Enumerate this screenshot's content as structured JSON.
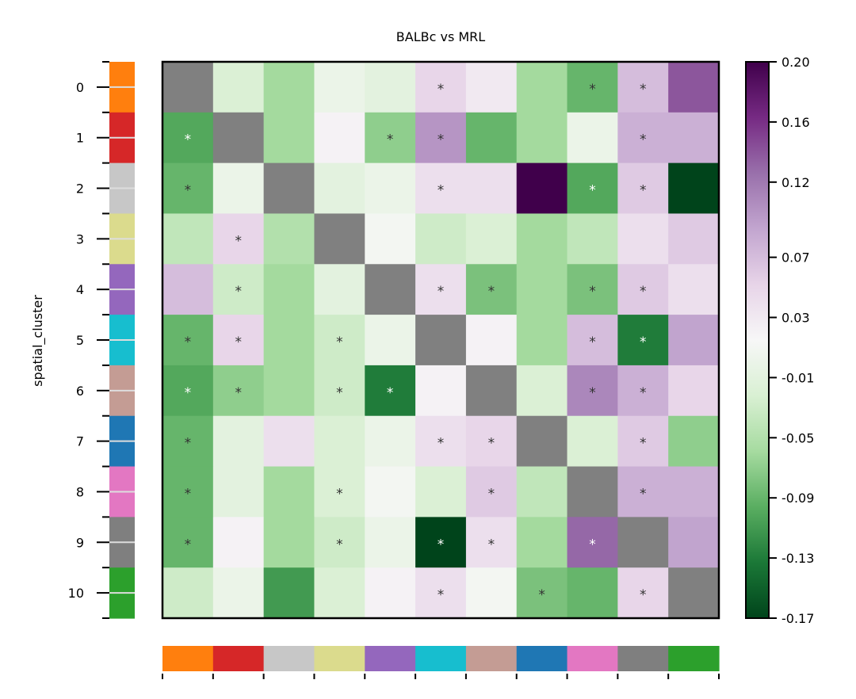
{
  "chart_data": {
    "type": "heatmap",
    "title": "BALBc vs MRL",
    "ylabel": "spatial_cluster",
    "xlabel": "",
    "row_labels": [
      "0",
      "1",
      "2",
      "3",
      "4",
      "5",
      "6",
      "7",
      "8",
      "9",
      "10"
    ],
    "cluster_colors": [
      "#ff7f0e",
      "#d62728",
      "#c7c7c7",
      "#dbdb8d",
      "#9467bd",
      "#17becf",
      "#c49c94",
      "#1f77b4",
      "#e377c2",
      "#7f7f7f",
      "#2ca02c"
    ],
    "diagonal_color": "#808080",
    "values": [
      [
        null,
        -0.02,
        -0.06,
        0.0,
        -0.01,
        0.05,
        0.03,
        -0.06,
        -0.09,
        0.07,
        0.14
      ],
      [
        -0.1,
        null,
        -0.06,
        0.02,
        -0.07,
        0.1,
        -0.09,
        -0.06,
        0.0,
        0.08,
        0.08
      ],
      [
        -0.09,
        0.0,
        null,
        -0.01,
        0.0,
        0.04,
        0.04,
        0.2,
        -0.1,
        0.06,
        -0.17
      ],
      [
        -0.04,
        0.05,
        -0.05,
        null,
        0.01,
        -0.03,
        -0.02,
        -0.06,
        -0.04,
        0.04,
        0.06
      ],
      [
        0.07,
        -0.03,
        -0.06,
        -0.01,
        null,
        0.04,
        -0.08,
        -0.06,
        -0.08,
        0.06,
        0.04
      ],
      [
        -0.09,
        0.05,
        -0.06,
        -0.03,
        0.0,
        null,
        0.02,
        -0.06,
        0.07,
        -0.13,
        0.09
      ],
      [
        -0.1,
        -0.07,
        -0.06,
        -0.03,
        -0.13,
        0.02,
        null,
        -0.02,
        0.11,
        0.08,
        0.05
      ],
      [
        -0.09,
        -0.01,
        0.04,
        -0.02,
        0.0,
        0.04,
        0.05,
        null,
        -0.02,
        0.06,
        -0.07
      ],
      [
        -0.09,
        -0.01,
        -0.06,
        -0.02,
        0.01,
        -0.02,
        0.06,
        -0.04,
        null,
        0.08,
        0.08
      ],
      [
        -0.09,
        0.02,
        -0.06,
        -0.03,
        0.0,
        -0.17,
        0.04,
        -0.06,
        0.13,
        null,
        0.09
      ],
      [
        -0.03,
        0.0,
        -0.11,
        -0.02,
        0.02,
        0.04,
        0.01,
        -0.08,
        -0.09,
        0.05,
        null
      ]
    ],
    "significant": [
      [
        [
          0,
          5
        ],
        [
          0,
          8
        ],
        [
          0,
          9
        ]
      ],
      [
        [
          1,
          0
        ],
        [
          1,
          4
        ],
        [
          1,
          5
        ],
        [
          1,
          9
        ]
      ],
      [
        [
          2,
          0
        ],
        [
          2,
          5
        ],
        [
          2,
          8
        ],
        [
          2,
          9
        ]
      ],
      [
        [
          3,
          1
        ]
      ],
      [
        [
          4,
          1
        ],
        [
          4,
          5
        ],
        [
          4,
          6
        ],
        [
          4,
          8
        ],
        [
          4,
          9
        ]
      ],
      [
        [
          5,
          0
        ],
        [
          5,
          1
        ],
        [
          5,
          3
        ],
        [
          5,
          8
        ],
        [
          5,
          9
        ]
      ],
      [
        [
          6,
          0
        ],
        [
          6,
          1
        ],
        [
          6,
          3
        ],
        [
          6,
          4
        ],
        [
          6,
          8
        ],
        [
          6,
          9
        ]
      ],
      [
        [
          7,
          0
        ],
        [
          7,
          5
        ],
        [
          7,
          6
        ],
        [
          7,
          9
        ]
      ],
      [
        [
          8,
          0
        ],
        [
          8,
          3
        ],
        [
          8,
          6
        ],
        [
          8,
          9
        ]
      ],
      [
        [
          9,
          0
        ],
        [
          9,
          3
        ],
        [
          9,
          5
        ],
        [
          9,
          6
        ],
        [
          9,
          8
        ]
      ],
      [
        [
          10,
          5
        ],
        [
          10,
          7
        ],
        [
          10,
          9
        ]
      ]
    ],
    "significance_marker": "*",
    "colorbar": {
      "vmin": -0.17,
      "vmax": 0.2,
      "tick_values": [
        0.2,
        0.16,
        0.12,
        0.07,
        0.03,
        -0.01,
        -0.05,
        -0.09,
        -0.13,
        -0.17
      ],
      "tick_labels": [
        "0.20",
        "0.16",
        "0.12",
        "0.07",
        "0.03",
        "-0.01",
        "-0.05",
        "-0.09",
        "-0.13",
        "-0.17"
      ],
      "colormap": "PRGn_r",
      "stops": [
        [
          0.0,
          "#00441b"
        ],
        [
          0.1,
          "#1b7837"
        ],
        [
          0.2,
          "#5aae61"
        ],
        [
          0.3,
          "#a6dba0"
        ],
        [
          0.4,
          "#d9f0d3"
        ],
        [
          0.5,
          "#f7f7f7"
        ],
        [
          0.6,
          "#e7d4e8"
        ],
        [
          0.7,
          "#c2a5cf"
        ],
        [
          0.8,
          "#9970ab"
        ],
        [
          0.9,
          "#762a83"
        ],
        [
          1.0,
          "#40004b"
        ]
      ]
    },
    "grid": false
  }
}
